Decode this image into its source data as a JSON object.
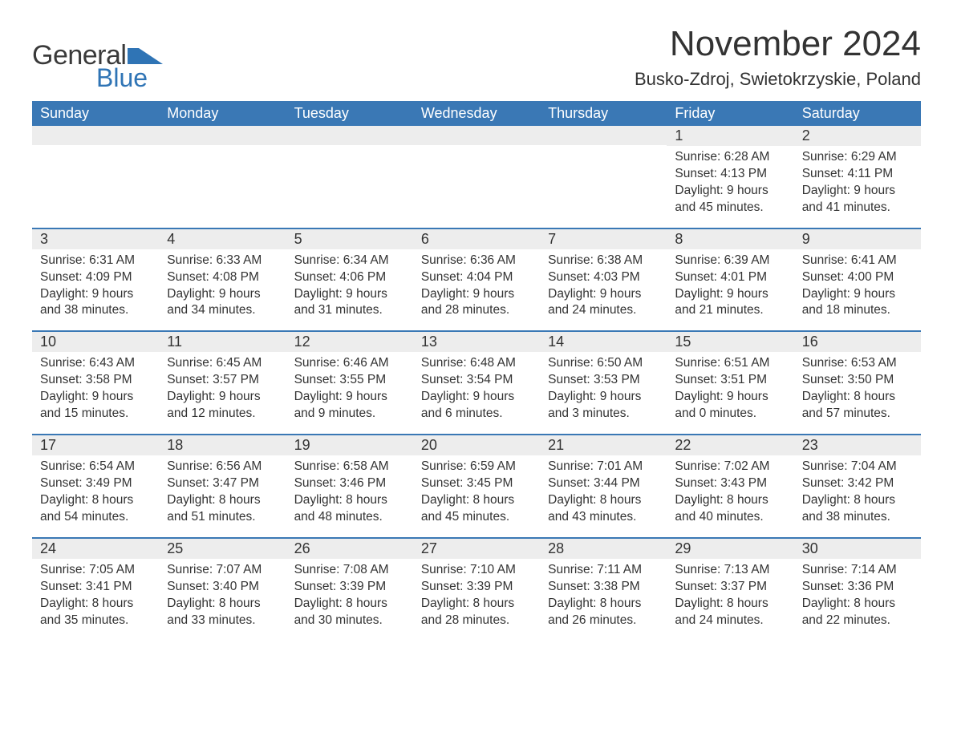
{
  "brand": {
    "line1": "General",
    "line2": "Blue",
    "flag_color": "#2f74b5",
    "text_color": "#3a3a3a"
  },
  "title": "November 2024",
  "location": "Busko-Zdroj, Swietokrzyskie, Poland",
  "colors": {
    "header_bg": "#3a78b5",
    "header_text": "#ffffff",
    "row_border": "#3a78b5",
    "daynum_bg": "#ededed",
    "body_text": "#333333",
    "page_bg": "#ffffff"
  },
  "day_names": [
    "Sunday",
    "Monday",
    "Tuesday",
    "Wednesday",
    "Thursday",
    "Friday",
    "Saturday"
  ],
  "weeks": [
    [
      {
        "blank": true
      },
      {
        "blank": true
      },
      {
        "blank": true
      },
      {
        "blank": true
      },
      {
        "blank": true
      },
      {
        "n": "1",
        "sunrise": "Sunrise: 6:28 AM",
        "sunset": "Sunset: 4:13 PM",
        "daylight": "Daylight: 9 hours and 45 minutes."
      },
      {
        "n": "2",
        "sunrise": "Sunrise: 6:29 AM",
        "sunset": "Sunset: 4:11 PM",
        "daylight": "Daylight: 9 hours and 41 minutes."
      }
    ],
    [
      {
        "n": "3",
        "sunrise": "Sunrise: 6:31 AM",
        "sunset": "Sunset: 4:09 PM",
        "daylight": "Daylight: 9 hours and 38 minutes."
      },
      {
        "n": "4",
        "sunrise": "Sunrise: 6:33 AM",
        "sunset": "Sunset: 4:08 PM",
        "daylight": "Daylight: 9 hours and 34 minutes."
      },
      {
        "n": "5",
        "sunrise": "Sunrise: 6:34 AM",
        "sunset": "Sunset: 4:06 PM",
        "daylight": "Daylight: 9 hours and 31 minutes."
      },
      {
        "n": "6",
        "sunrise": "Sunrise: 6:36 AM",
        "sunset": "Sunset: 4:04 PM",
        "daylight": "Daylight: 9 hours and 28 minutes."
      },
      {
        "n": "7",
        "sunrise": "Sunrise: 6:38 AM",
        "sunset": "Sunset: 4:03 PM",
        "daylight": "Daylight: 9 hours and 24 minutes."
      },
      {
        "n": "8",
        "sunrise": "Sunrise: 6:39 AM",
        "sunset": "Sunset: 4:01 PM",
        "daylight": "Daylight: 9 hours and 21 minutes."
      },
      {
        "n": "9",
        "sunrise": "Sunrise: 6:41 AM",
        "sunset": "Sunset: 4:00 PM",
        "daylight": "Daylight: 9 hours and 18 minutes."
      }
    ],
    [
      {
        "n": "10",
        "sunrise": "Sunrise: 6:43 AM",
        "sunset": "Sunset: 3:58 PM",
        "daylight": "Daylight: 9 hours and 15 minutes."
      },
      {
        "n": "11",
        "sunrise": "Sunrise: 6:45 AM",
        "sunset": "Sunset: 3:57 PM",
        "daylight": "Daylight: 9 hours and 12 minutes."
      },
      {
        "n": "12",
        "sunrise": "Sunrise: 6:46 AM",
        "sunset": "Sunset: 3:55 PM",
        "daylight": "Daylight: 9 hours and 9 minutes."
      },
      {
        "n": "13",
        "sunrise": "Sunrise: 6:48 AM",
        "sunset": "Sunset: 3:54 PM",
        "daylight": "Daylight: 9 hours and 6 minutes."
      },
      {
        "n": "14",
        "sunrise": "Sunrise: 6:50 AM",
        "sunset": "Sunset: 3:53 PM",
        "daylight": "Daylight: 9 hours and 3 minutes."
      },
      {
        "n": "15",
        "sunrise": "Sunrise: 6:51 AM",
        "sunset": "Sunset: 3:51 PM",
        "daylight": "Daylight: 9 hours and 0 minutes."
      },
      {
        "n": "16",
        "sunrise": "Sunrise: 6:53 AM",
        "sunset": "Sunset: 3:50 PM",
        "daylight": "Daylight: 8 hours and 57 minutes."
      }
    ],
    [
      {
        "n": "17",
        "sunrise": "Sunrise: 6:54 AM",
        "sunset": "Sunset: 3:49 PM",
        "daylight": "Daylight: 8 hours and 54 minutes."
      },
      {
        "n": "18",
        "sunrise": "Sunrise: 6:56 AM",
        "sunset": "Sunset: 3:47 PM",
        "daylight": "Daylight: 8 hours and 51 minutes."
      },
      {
        "n": "19",
        "sunrise": "Sunrise: 6:58 AM",
        "sunset": "Sunset: 3:46 PM",
        "daylight": "Daylight: 8 hours and 48 minutes."
      },
      {
        "n": "20",
        "sunrise": "Sunrise: 6:59 AM",
        "sunset": "Sunset: 3:45 PM",
        "daylight": "Daylight: 8 hours and 45 minutes."
      },
      {
        "n": "21",
        "sunrise": "Sunrise: 7:01 AM",
        "sunset": "Sunset: 3:44 PM",
        "daylight": "Daylight: 8 hours and 43 minutes."
      },
      {
        "n": "22",
        "sunrise": "Sunrise: 7:02 AM",
        "sunset": "Sunset: 3:43 PM",
        "daylight": "Daylight: 8 hours and 40 minutes."
      },
      {
        "n": "23",
        "sunrise": "Sunrise: 7:04 AM",
        "sunset": "Sunset: 3:42 PM",
        "daylight": "Daylight: 8 hours and 38 minutes."
      }
    ],
    [
      {
        "n": "24",
        "sunrise": "Sunrise: 7:05 AM",
        "sunset": "Sunset: 3:41 PM",
        "daylight": "Daylight: 8 hours and 35 minutes."
      },
      {
        "n": "25",
        "sunrise": "Sunrise: 7:07 AM",
        "sunset": "Sunset: 3:40 PM",
        "daylight": "Daylight: 8 hours and 33 minutes."
      },
      {
        "n": "26",
        "sunrise": "Sunrise: 7:08 AM",
        "sunset": "Sunset: 3:39 PM",
        "daylight": "Daylight: 8 hours and 30 minutes."
      },
      {
        "n": "27",
        "sunrise": "Sunrise: 7:10 AM",
        "sunset": "Sunset: 3:39 PM",
        "daylight": "Daylight: 8 hours and 28 minutes."
      },
      {
        "n": "28",
        "sunrise": "Sunrise: 7:11 AM",
        "sunset": "Sunset: 3:38 PM",
        "daylight": "Daylight: 8 hours and 26 minutes."
      },
      {
        "n": "29",
        "sunrise": "Sunrise: 7:13 AM",
        "sunset": "Sunset: 3:37 PM",
        "daylight": "Daylight: 8 hours and 24 minutes."
      },
      {
        "n": "30",
        "sunrise": "Sunrise: 7:14 AM",
        "sunset": "Sunset: 3:36 PM",
        "daylight": "Daylight: 8 hours and 22 minutes."
      }
    ]
  ]
}
